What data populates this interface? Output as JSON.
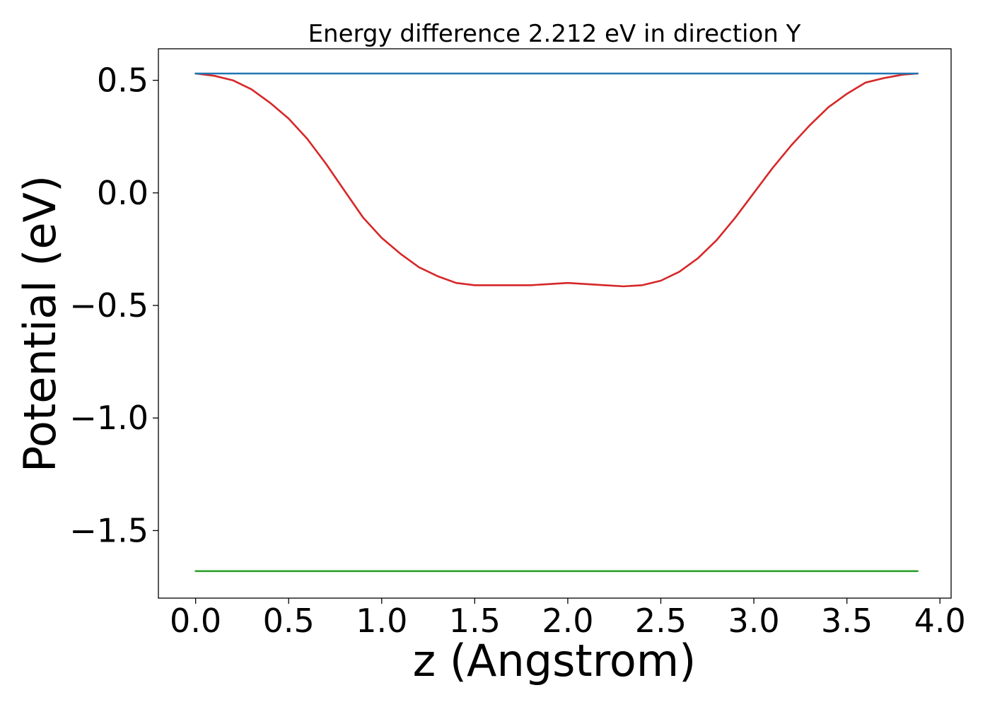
{
  "chart_data": {
    "type": "line",
    "title": "Energy difference 2.212 eV in direction Y",
    "xlabel": "z (Angstrom)",
    "ylabel": "Potential (eV)",
    "xlim": [
      -0.2,
      4.06
    ],
    "ylim": [
      -1.8,
      0.64
    ],
    "x_ticks": [
      0.0,
      0.5,
      1.0,
      1.5,
      2.0,
      2.5,
      3.0,
      3.5,
      4.0
    ],
    "x_tick_labels": [
      "0.0",
      "0.5",
      "1.0",
      "1.5",
      "2.0",
      "2.5",
      "3.0",
      "3.5",
      "4.0"
    ],
    "y_ticks": [
      0.5,
      0.0,
      -0.5,
      -1.0,
      -1.5
    ],
    "y_tick_labels": [
      "0.5",
      "0.0",
      "−0.5",
      "−1.0",
      "−1.5"
    ],
    "grid": false,
    "legend": "none",
    "series": [
      {
        "color": "#d62728",
        "x": [
          0.0,
          0.1,
          0.2,
          0.3,
          0.4,
          0.5,
          0.6,
          0.7,
          0.8,
          0.9,
          1.0,
          1.1,
          1.2,
          1.3,
          1.4,
          1.5,
          1.6,
          1.7,
          1.8,
          1.9,
          2.0,
          2.1,
          2.2,
          2.3,
          2.4,
          2.5,
          2.6,
          2.7,
          2.8,
          2.9,
          3.0,
          3.1,
          3.2,
          3.3,
          3.4,
          3.5,
          3.6,
          3.7,
          3.8,
          3.88
        ],
        "y": [
          0.53,
          0.52,
          0.5,
          0.46,
          0.4,
          0.33,
          0.24,
          0.13,
          0.01,
          -0.11,
          -0.2,
          -0.27,
          -0.33,
          -0.37,
          -0.4,
          -0.41,
          -0.41,
          -0.41,
          -0.41,
          -0.405,
          -0.4,
          -0.405,
          -0.41,
          -0.415,
          -0.41,
          -0.39,
          -0.35,
          -0.29,
          -0.21,
          -0.11,
          0.0,
          0.11,
          0.21,
          0.3,
          0.38,
          0.44,
          0.49,
          0.51,
          0.525,
          0.53
        ]
      },
      {
        "color": "#1f77b4",
        "x": [
          0.0,
          3.88
        ],
        "y": [
          0.53,
          0.53
        ]
      },
      {
        "color": "#2ca02c",
        "x": [
          0.0,
          3.88
        ],
        "y": [
          -1.68,
          -1.68
        ]
      }
    ]
  }
}
